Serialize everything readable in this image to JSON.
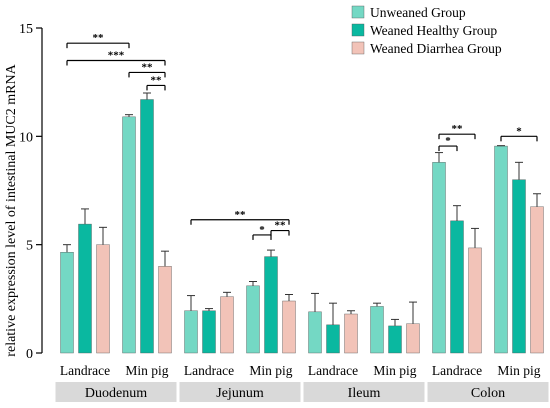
{
  "chart_data": {
    "type": "bar",
    "ylabel": "relative expression level of intestinal MUC2 mRNA",
    "ylim": [
      0,
      15
    ],
    "yticks": [
      0,
      5,
      10,
      15
    ],
    "legend_position": "top-right",
    "series": [
      {
        "name": "Unweaned Group",
        "color": "#74d8c4"
      },
      {
        "name": "Weaned Healthy Group",
        "color": "#0ab8a0"
      },
      {
        "name": "Weaned Diarrhea Group",
        "color": "#f2c3b8"
      }
    ],
    "regions": [
      {
        "name": "Duodenum",
        "groups": [
          {
            "label": "Landrace",
            "values": [
              4.65,
              5.95,
              5.0
            ],
            "errors": [
              0.35,
              0.7,
              0.8
            ]
          },
          {
            "label": "Min pig",
            "values": [
              10.9,
              11.7,
              4.0
            ],
            "errors": [
              0.1,
              0.3,
              0.7
            ]
          }
        ]
      },
      {
        "name": "Jejunum",
        "groups": [
          {
            "label": "Landrace",
            "values": [
              1.95,
              1.95,
              2.6
            ],
            "errors": [
              0.7,
              0.1,
              0.2
            ]
          },
          {
            "label": "Min pig",
            "values": [
              3.1,
              4.45,
              2.4
            ],
            "errors": [
              0.2,
              0.3,
              0.3
            ]
          }
        ]
      },
      {
        "name": "Ileum",
        "groups": [
          {
            "label": "Landrace",
            "values": [
              1.9,
              1.3,
              1.8
            ],
            "errors": [
              0.85,
              1.0,
              0.15
            ]
          },
          {
            "label": "Min pig",
            "values": [
              2.15,
              1.25,
              1.35
            ],
            "errors": [
              0.15,
              0.3,
              1.0
            ]
          }
        ]
      },
      {
        "name": "Colon",
        "groups": [
          {
            "label": "Landrace",
            "values": [
              8.8,
              6.1,
              4.85
            ],
            "errors": [
              0.45,
              0.7,
              0.9
            ]
          },
          {
            "label": "Min pig",
            "values": [
              9.55,
              8.0,
              6.75
            ],
            "errors": [
              0.02,
              0.8,
              0.6
            ]
          }
        ]
      }
    ],
    "significance": [
      {
        "label": "**",
        "from": [
          0,
          0,
          0
        ],
        "to": [
          0,
          1,
          0
        ],
        "y": 14.3
      },
      {
        "label": "***",
        "from": [
          0,
          0,
          0
        ],
        "to": [
          0,
          1,
          2
        ],
        "y": 13.5
      },
      {
        "label": "**",
        "from": [
          0,
          1,
          0
        ],
        "to": [
          0,
          1,
          2
        ],
        "y": 12.95
      },
      {
        "label": "**",
        "from": [
          0,
          1,
          1
        ],
        "to": [
          0,
          1,
          2
        ],
        "y": 12.35
      },
      {
        "label": "**",
        "from": [
          1,
          0,
          0
        ],
        "to": [
          1,
          1,
          2
        ],
        "y": 6.15
      },
      {
        "label": "*",
        "from": [
          1,
          1,
          0
        ],
        "to": [
          1,
          1,
          1
        ],
        "y": 5.45
      },
      {
        "label": "**",
        "from": [
          1,
          1,
          1
        ],
        "to": [
          1,
          1,
          2
        ],
        "y": 5.65
      },
      {
        "label": "*",
        "from": [
          3,
          0,
          0
        ],
        "to": [
          3,
          0,
          1
        ],
        "y": 9.55
      },
      {
        "label": "**",
        "from": [
          3,
          0,
          0
        ],
        "to": [
          3,
          0,
          2
        ],
        "y": 10.1
      },
      {
        "label": "*",
        "from": [
          3,
          1,
          0
        ],
        "to": [
          3,
          1,
          2
        ],
        "y": 10.0
      }
    ]
  }
}
